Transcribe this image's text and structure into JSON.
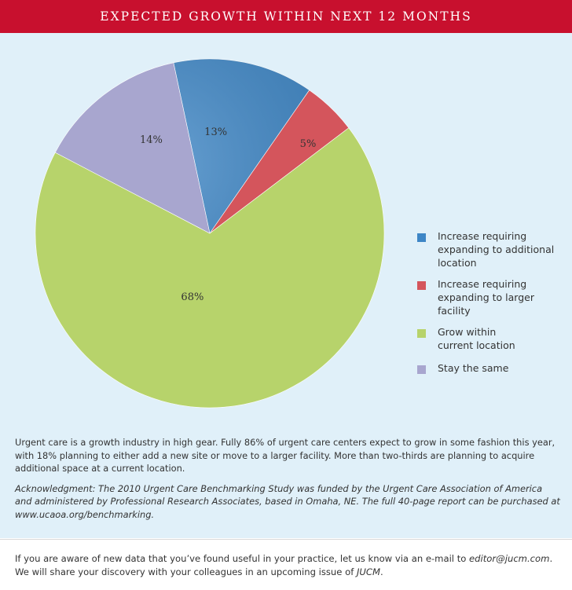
{
  "chart_data": {
    "type": "pie",
    "title": "EXPECTED GROWTH WITHIN NEXT 12 MONTHS",
    "categories": [
      "Increase requiring expanding to additional location",
      "Increase requiring expanding to larger facility",
      "Grow within current location",
      "Stay the same"
    ],
    "values": [
      13,
      5,
      68,
      14
    ],
    "data_labels": [
      "13%",
      "5%",
      "68%",
      "14%"
    ],
    "colors": [
      "#3d86c6",
      "#d4555c",
      "#b7d36b",
      "#a8a6cf"
    ],
    "legend_lines": [
      [
        "Increase requiring",
        "expanding to additional",
        "location"
      ],
      [
        "Increase requiring",
        "expanding to larger",
        "facility"
      ],
      [
        "Grow within",
        "current location"
      ],
      [
        "Stay the same"
      ]
    ],
    "legend_position": "right"
  },
  "caption": {
    "paragraph": "Urgent care is a growth industry in high gear. Fully 86% of urgent care centers expect to grow in some fashion this year, with 18% planning to either add a new site or move to a larger facility. More than two-thirds are planning to acquire additional space at a current location.",
    "acknowledgment": "Acknowledgment: The 2010 Urgent Care Benchmarking Study was funded by the Urgent Care Association of America and administered by Professional Research Associates, based in Omaha, NE. The full 40-page report can be purchased at www.ucaoa.org/benchmarking."
  },
  "footer": {
    "line1_pre": "If you are aware of new data that you’ve found useful in your practice, let us know via an e-mail to ",
    "email": "editor@jucm.com",
    "line1_post": ".",
    "line2_pre": "We will share your discovery with your colleagues in an upcoming issue of ",
    "journal": "JUCM",
    "line2_post": "."
  }
}
